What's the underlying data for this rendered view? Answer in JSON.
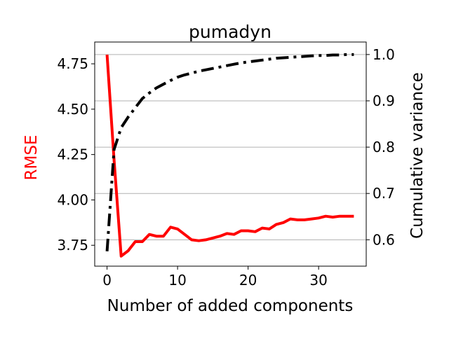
{
  "chart_data": {
    "type": "line",
    "title": "pumadyn",
    "xlabel": "Number of added components",
    "ylabel_left": "RMSE",
    "ylabel_right": "Cumulative variance",
    "xlim": [
      -1.75,
      36.75
    ],
    "ylim_left": [
      3.635,
      4.87
    ],
    "ylim_right": [
      0.543,
      1.027
    ],
    "x_ticks": [
      0,
      10,
      20,
      30
    ],
    "y_left_ticks": [
      3.75,
      4.0,
      4.25,
      4.5,
      4.75
    ],
    "y_left_tick_labels": [
      "3.75",
      "4.00",
      "4.25",
      "4.50",
      "4.75"
    ],
    "y_right_ticks": [
      0.6,
      0.7,
      0.8,
      0.9,
      1.0
    ],
    "y_right_tick_labels": [
      "0.6",
      "0.7",
      "0.8",
      "0.9",
      "1.0"
    ],
    "grid": "horizontal, right axis",
    "colors": {
      "rmse": "#ff0000",
      "variance": "#000000",
      "grid": "#b0b0b0",
      "axis_left_label": "#ff0000"
    },
    "series": [
      {
        "axis": "left",
        "style": "solid",
        "x": [
          0,
          1,
          2,
          3,
          4,
          5,
          6,
          7,
          8,
          9,
          10,
          11,
          12,
          13,
          14,
          15,
          16,
          17,
          18,
          19,
          20,
          21,
          22,
          23,
          24,
          25,
          26,
          27,
          28,
          29,
          30,
          31,
          32,
          33,
          34,
          35
        ],
        "values": [
          4.8,
          4.22,
          3.69,
          3.72,
          3.77,
          3.77,
          3.81,
          3.8,
          3.8,
          3.85,
          3.84,
          3.81,
          3.78,
          3.775,
          3.78,
          3.79,
          3.8,
          3.815,
          3.81,
          3.83,
          3.83,
          3.825,
          3.845,
          3.84,
          3.865,
          3.875,
          3.895,
          3.89,
          3.89,
          3.895,
          3.9,
          3.91,
          3.905,
          3.91,
          3.91,
          3.91
        ]
      },
      {
        "axis": "right",
        "style": "dashdot",
        "x": [
          0,
          1,
          2,
          3,
          4,
          5,
          6,
          7,
          8,
          9,
          10,
          11,
          12,
          13,
          14,
          15,
          16,
          17,
          18,
          19,
          20,
          21,
          22,
          23,
          24,
          25,
          26,
          27,
          28,
          29,
          30,
          31,
          32,
          33,
          34,
          35
        ],
        "values": [
          0.575,
          0.795,
          0.842,
          0.865,
          0.885,
          0.905,
          0.917,
          0.928,
          0.936,
          0.944,
          0.951,
          0.956,
          0.96,
          0.964,
          0.967,
          0.97,
          0.973,
          0.976,
          0.979,
          0.982,
          0.984,
          0.986,
          0.988,
          0.99,
          0.992,
          0.993,
          0.994,
          0.995,
          0.996,
          0.997,
          0.998,
          0.998,
          0.999,
          0.999,
          1.0,
          1.0
        ]
      }
    ]
  }
}
